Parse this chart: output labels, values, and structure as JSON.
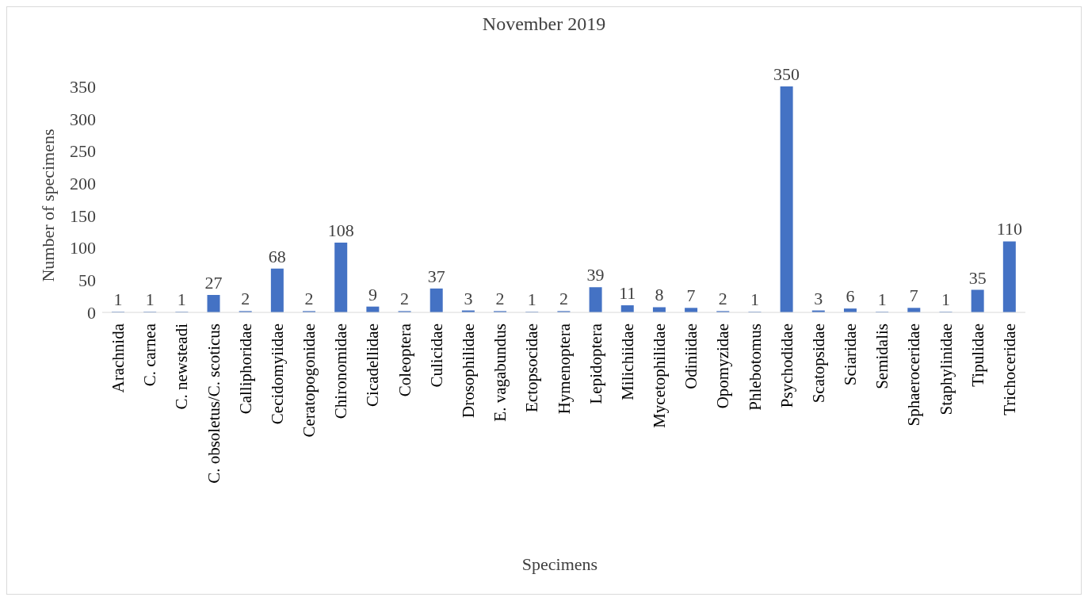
{
  "chart_data": {
    "type": "bar",
    "title": "November 2019",
    "xlabel": "Specimens",
    "ylabel": "Number of specimens",
    "categories": [
      "Arachnida",
      "C. carnea",
      "C. newsteadi",
      "C. obsoletus/C. scoticus",
      "Calliphoridae",
      "Cecidomyiidae",
      "Ceratopogonidae",
      "Chironomidae",
      "Cicadellidae",
      "Coleoptera",
      "Culicidae",
      "Drosophilidae",
      "E. vagabundus",
      "Ectopsocidae",
      "Hymenoptera",
      "Lepidoptera",
      "Milichiidae",
      "Mycetophilidae",
      "Odiniidae",
      "Opomyzidae",
      "Phlebotomus",
      "Psychodidae",
      "Scatopsidae",
      "Sciaridae",
      "Semidalis",
      "Sphaeroceridae",
      "Staphylinidae",
      "Tipulidae",
      "Trichoceridae"
    ],
    "values": [
      1,
      1,
      1,
      27,
      2,
      68,
      2,
      108,
      9,
      2,
      37,
      3,
      2,
      1,
      2,
      39,
      11,
      8,
      7,
      2,
      1,
      350,
      3,
      6,
      1,
      7,
      1,
      35,
      110
    ],
    "color": "#4472c4",
    "ylim": [
      0,
      350
    ],
    "yticks": [
      0,
      50,
      100,
      150,
      200,
      250,
      300,
      350
    ],
    "grid": false,
    "legend": false,
    "data_labels": true
  }
}
